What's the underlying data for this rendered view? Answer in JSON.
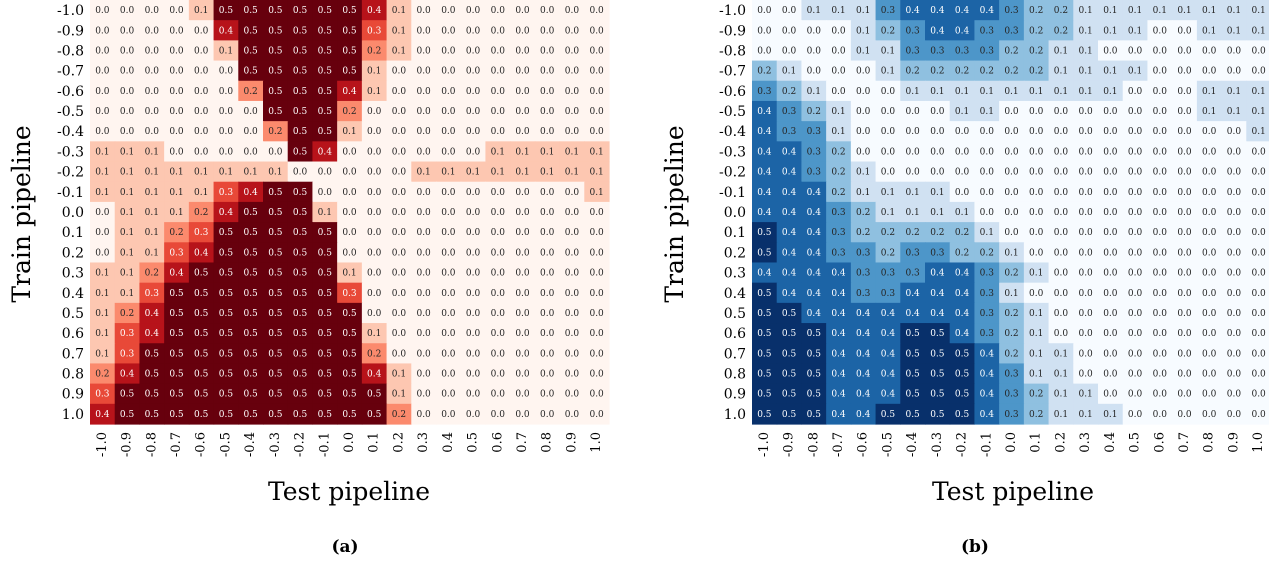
{
  "figure": {
    "panels": [
      {
        "label": "(a)",
        "xlabel": "Test pipeline",
        "ylabel": "Train pipeline",
        "colormap": "Reds"
      },
      {
        "label": "(b)",
        "xlabel": "Test pipeline",
        "ylabel": "Train pipeline",
        "colormap": "Blues"
      }
    ]
  },
  "chart_data": [
    {
      "type": "heatmap",
      "title": "",
      "panel_label": "(a)",
      "xlabel": "Test pipeline",
      "ylabel": "Train pipeline",
      "colormap": "Reds",
      "value_range": [
        0,
        0.5
      ],
      "x": [
        "-1.0",
        "-0.9",
        "-0.8",
        "-0.7",
        "-0.6",
        "-0.5",
        "-0.4",
        "-0.3",
        "-0.2",
        "-0.1",
        "0.0",
        "0.1",
        "0.2",
        "0.3",
        "0.4",
        "0.5",
        "0.6",
        "0.7",
        "0.8",
        "0.9",
        "1.0"
      ],
      "y": [
        "-1.0",
        "-0.9",
        "-0.8",
        "-0.7",
        "-0.6",
        "-0.5",
        "-0.4",
        "-0.3",
        "-0.2",
        "-0.1",
        "0.0",
        "0.1",
        "0.2",
        "0.3",
        "0.4",
        "0.5",
        "0.6",
        "0.7",
        "0.8",
        "0.9",
        "1.0"
      ],
      "values": [
        [
          0.0,
          0.0,
          0.0,
          0.0,
          0.1,
          0.5,
          0.5,
          0.5,
          0.5,
          0.5,
          0.5,
          0.4,
          0.1,
          0.0,
          0.0,
          0.0,
          0.0,
          0.0,
          0.0,
          0.0,
          0.0
        ],
        [
          0.0,
          0.0,
          0.0,
          0.0,
          0.0,
          0.4,
          0.5,
          0.5,
          0.5,
          0.5,
          0.5,
          0.3,
          0.1,
          0.0,
          0.0,
          0.0,
          0.0,
          0.0,
          0.0,
          0.0,
          0.0
        ],
        [
          0.0,
          0.0,
          0.0,
          0.0,
          0.0,
          0.1,
          0.5,
          0.5,
          0.5,
          0.5,
          0.5,
          0.2,
          0.1,
          0.0,
          0.0,
          0.0,
          0.0,
          0.0,
          0.0,
          0.0,
          0.0
        ],
        [
          0.0,
          0.0,
          0.0,
          0.0,
          0.0,
          0.0,
          0.5,
          0.5,
          0.5,
          0.5,
          0.5,
          0.1,
          0.0,
          0.0,
          0.0,
          0.0,
          0.0,
          0.0,
          0.0,
          0.0,
          0.0
        ],
        [
          0.0,
          0.0,
          0.0,
          0.0,
          0.0,
          0.0,
          0.2,
          0.5,
          0.5,
          0.5,
          0.4,
          0.1,
          0.0,
          0.0,
          0.0,
          0.0,
          0.0,
          0.0,
          0.0,
          0.0,
          0.0
        ],
        [
          0.0,
          0.0,
          0.0,
          0.0,
          0.0,
          0.0,
          0.0,
          0.5,
          0.5,
          0.5,
          0.2,
          0.0,
          0.0,
          0.0,
          0.0,
          0.0,
          0.0,
          0.0,
          0.0,
          0.0,
          0.0
        ],
        [
          0.0,
          0.0,
          0.0,
          0.0,
          0.0,
          0.0,
          0.0,
          0.2,
          0.5,
          0.5,
          0.1,
          0.0,
          0.0,
          0.0,
          0.0,
          0.0,
          0.0,
          0.0,
          0.0,
          0.0,
          0.0
        ],
        [
          0.1,
          0.1,
          0.1,
          0.0,
          0.0,
          0.0,
          0.0,
          0.0,
          0.5,
          0.4,
          0.0,
          0.0,
          0.0,
          0.0,
          0.0,
          0.0,
          0.1,
          0.1,
          0.1,
          0.1,
          0.1
        ],
        [
          0.1,
          0.1,
          0.1,
          0.1,
          0.1,
          0.1,
          0.1,
          0.1,
          0.0,
          0.0,
          0.0,
          0.0,
          0.0,
          0.1,
          0.1,
          0.1,
          0.1,
          0.1,
          0.1,
          0.1,
          0.1
        ],
        [
          0.1,
          0.1,
          0.1,
          0.1,
          0.1,
          0.3,
          0.4,
          0.5,
          0.5,
          0.0,
          0.0,
          0.0,
          0.0,
          0.0,
          0.0,
          0.0,
          0.0,
          0.0,
          0.0,
          0.0,
          0.1
        ],
        [
          0.0,
          0.1,
          0.1,
          0.1,
          0.2,
          0.4,
          0.5,
          0.5,
          0.5,
          0.1,
          0.0,
          0.0,
          0.0,
          0.0,
          0.0,
          0.0,
          0.0,
          0.0,
          0.0,
          0.0,
          0.0
        ],
        [
          0.0,
          0.1,
          0.1,
          0.2,
          0.3,
          0.5,
          0.5,
          0.5,
          0.5,
          0.5,
          0.0,
          0.0,
          0.0,
          0.0,
          0.0,
          0.0,
          0.0,
          0.0,
          0.0,
          0.0,
          0.0
        ],
        [
          0.0,
          0.1,
          0.1,
          0.3,
          0.4,
          0.5,
          0.5,
          0.5,
          0.5,
          0.5,
          0.0,
          0.0,
          0.0,
          0.0,
          0.0,
          0.0,
          0.0,
          0.0,
          0.0,
          0.0,
          0.0
        ],
        [
          0.1,
          0.1,
          0.2,
          0.4,
          0.5,
          0.5,
          0.5,
          0.5,
          0.5,
          0.5,
          0.1,
          0.0,
          0.0,
          0.0,
          0.0,
          0.0,
          0.0,
          0.0,
          0.0,
          0.0,
          0.0
        ],
        [
          0.1,
          0.1,
          0.3,
          0.5,
          0.5,
          0.5,
          0.5,
          0.5,
          0.5,
          0.5,
          0.3,
          0.0,
          0.0,
          0.0,
          0.0,
          0.0,
          0.0,
          0.0,
          0.0,
          0.0,
          0.0
        ],
        [
          0.1,
          0.2,
          0.4,
          0.5,
          0.5,
          0.5,
          0.5,
          0.5,
          0.5,
          0.5,
          0.5,
          0.0,
          0.0,
          0.0,
          0.0,
          0.0,
          0.0,
          0.0,
          0.0,
          0.0,
          0.0
        ],
        [
          0.1,
          0.3,
          0.4,
          0.5,
          0.5,
          0.5,
          0.5,
          0.5,
          0.5,
          0.5,
          0.5,
          0.1,
          0.0,
          0.0,
          0.0,
          0.0,
          0.0,
          0.0,
          0.0,
          0.0,
          0.0
        ],
        [
          0.1,
          0.3,
          0.5,
          0.5,
          0.5,
          0.5,
          0.5,
          0.5,
          0.5,
          0.5,
          0.5,
          0.2,
          0.0,
          0.0,
          0.0,
          0.0,
          0.0,
          0.0,
          0.0,
          0.0,
          0.0
        ],
        [
          0.2,
          0.4,
          0.5,
          0.5,
          0.5,
          0.5,
          0.5,
          0.5,
          0.5,
          0.5,
          0.5,
          0.4,
          0.1,
          0.0,
          0.0,
          0.0,
          0.0,
          0.0,
          0.0,
          0.0,
          0.0
        ],
        [
          0.3,
          0.5,
          0.5,
          0.5,
          0.5,
          0.5,
          0.5,
          0.5,
          0.5,
          0.5,
          0.5,
          0.5,
          0.1,
          0.0,
          0.0,
          0.0,
          0.0,
          0.0,
          0.0,
          0.0,
          0.0
        ],
        [
          0.4,
          0.5,
          0.5,
          0.5,
          0.5,
          0.5,
          0.5,
          0.5,
          0.5,
          0.5,
          0.5,
          0.5,
          0.2,
          0.0,
          0.0,
          0.0,
          0.0,
          0.0,
          0.0,
          0.0,
          0.0
        ]
      ]
    },
    {
      "type": "heatmap",
      "title": "",
      "panel_label": "(b)",
      "xlabel": "Test pipeline",
      "ylabel": "Train pipeline",
      "colormap": "Blues",
      "value_range": [
        0,
        0.5
      ],
      "x": [
        "-1.0",
        "-0.9",
        "-0.8",
        "-0.7",
        "-0.6",
        "-0.5",
        "-0.4",
        "-0.3",
        "-0.2",
        "-0.1",
        "0.0",
        "0.1",
        "0.2",
        "0.3",
        "0.4",
        "0.5",
        "0.6",
        "0.7",
        "0.8",
        "0.9",
        "1.0"
      ],
      "y": [
        "-1.0",
        "-0.9",
        "-0.8",
        "-0.7",
        "-0.6",
        "-0.5",
        "-0.4",
        "-0.3",
        "-0.2",
        "-0.1",
        "0.0",
        "0.1",
        "0.2",
        "0.3",
        "0.4",
        "0.5",
        "0.6",
        "0.7",
        "0.8",
        "0.9",
        "1.0"
      ],
      "values": [
        [
          0.0,
          0.0,
          0.1,
          0.1,
          0.1,
          0.3,
          0.4,
          0.4,
          0.4,
          0.4,
          0.3,
          0.2,
          0.2,
          0.1,
          0.1,
          0.1,
          0.1,
          0.1,
          0.1,
          0.1,
          0.1
        ],
        [
          0.0,
          0.0,
          0.0,
          0.0,
          0.1,
          0.2,
          0.3,
          0.4,
          0.4,
          0.3,
          0.3,
          0.2,
          0.2,
          0.1,
          0.1,
          0.1,
          0.0,
          0.0,
          0.1,
          0.1,
          0.1
        ],
        [
          0.0,
          0.0,
          0.0,
          0.0,
          0.1,
          0.1,
          0.3,
          0.3,
          0.3,
          0.3,
          0.2,
          0.2,
          0.1,
          0.1,
          0.0,
          0.0,
          0.0,
          0.0,
          0.0,
          0.0,
          0.0
        ],
        [
          0.2,
          0.1,
          0.0,
          0.0,
          0.0,
          0.1,
          0.2,
          0.2,
          0.2,
          0.2,
          0.2,
          0.2,
          0.1,
          0.1,
          0.1,
          0.1,
          0.0,
          0.0,
          0.0,
          0.0,
          0.0
        ],
        [
          0.3,
          0.2,
          0.1,
          0.0,
          0.0,
          0.0,
          0.1,
          0.1,
          0.1,
          0.1,
          0.1,
          0.1,
          0.1,
          0.1,
          0.1,
          0.0,
          0.0,
          0.0,
          0.1,
          0.1,
          0.1
        ],
        [
          0.4,
          0.3,
          0.2,
          0.1,
          0.0,
          0.0,
          0.0,
          0.0,
          0.1,
          0.1,
          0.0,
          0.0,
          0.0,
          0.0,
          0.0,
          0.0,
          0.0,
          0.0,
          0.1,
          0.1,
          0.1
        ],
        [
          0.4,
          0.3,
          0.3,
          0.1,
          0.0,
          0.0,
          0.0,
          0.0,
          0.0,
          0.0,
          0.0,
          0.0,
          0.0,
          0.0,
          0.0,
          0.0,
          0.0,
          0.0,
          0.0,
          0.0,
          0.1
        ],
        [
          0.4,
          0.4,
          0.3,
          0.2,
          0.0,
          0.0,
          0.0,
          0.0,
          0.0,
          0.0,
          0.0,
          0.0,
          0.0,
          0.0,
          0.0,
          0.0,
          0.0,
          0.0,
          0.0,
          0.0,
          0.0
        ],
        [
          0.4,
          0.4,
          0.3,
          0.2,
          0.1,
          0.0,
          0.0,
          0.0,
          0.0,
          0.0,
          0.0,
          0.0,
          0.0,
          0.0,
          0.0,
          0.0,
          0.0,
          0.0,
          0.0,
          0.0,
          0.0
        ],
        [
          0.4,
          0.4,
          0.4,
          0.2,
          0.1,
          0.1,
          0.1,
          0.1,
          0.0,
          0.0,
          0.0,
          0.0,
          0.0,
          0.0,
          0.0,
          0.0,
          0.0,
          0.0,
          0.0,
          0.0,
          0.0
        ],
        [
          0.4,
          0.4,
          0.4,
          0.3,
          0.2,
          0.1,
          0.1,
          0.1,
          0.1,
          0.0,
          0.0,
          0.0,
          0.0,
          0.0,
          0.0,
          0.0,
          0.0,
          0.0,
          0.0,
          0.0,
          0.0
        ],
        [
          0.5,
          0.4,
          0.4,
          0.3,
          0.2,
          0.2,
          0.2,
          0.2,
          0.2,
          0.1,
          0.0,
          0.0,
          0.0,
          0.0,
          0.0,
          0.0,
          0.0,
          0.0,
          0.0,
          0.0,
          0.0
        ],
        [
          0.5,
          0.4,
          0.4,
          0.3,
          0.3,
          0.2,
          0.3,
          0.3,
          0.2,
          0.2,
          0.1,
          0.0,
          0.0,
          0.0,
          0.0,
          0.0,
          0.0,
          0.0,
          0.0,
          0.0,
          0.0
        ],
        [
          0.4,
          0.4,
          0.4,
          0.4,
          0.3,
          0.3,
          0.3,
          0.4,
          0.4,
          0.3,
          0.2,
          0.1,
          0.0,
          0.0,
          0.0,
          0.0,
          0.0,
          0.0,
          0.0,
          0.0,
          0.0
        ],
        [
          0.5,
          0.4,
          0.4,
          0.4,
          0.3,
          0.3,
          0.4,
          0.4,
          0.4,
          0.3,
          0.1,
          0.0,
          0.0,
          0.0,
          0.0,
          0.0,
          0.0,
          0.0,
          0.0,
          0.0,
          0.0
        ],
        [
          0.5,
          0.5,
          0.4,
          0.4,
          0.4,
          0.4,
          0.4,
          0.4,
          0.4,
          0.3,
          0.2,
          0.1,
          0.0,
          0.0,
          0.0,
          0.0,
          0.0,
          0.0,
          0.0,
          0.0,
          0.0
        ],
        [
          0.5,
          0.5,
          0.5,
          0.4,
          0.4,
          0.4,
          0.5,
          0.5,
          0.4,
          0.3,
          0.2,
          0.1,
          0.0,
          0.0,
          0.0,
          0.0,
          0.0,
          0.0,
          0.0,
          0.0,
          0.0
        ],
        [
          0.5,
          0.5,
          0.5,
          0.4,
          0.4,
          0.4,
          0.5,
          0.5,
          0.5,
          0.4,
          0.2,
          0.1,
          0.1,
          0.0,
          0.0,
          0.0,
          0.0,
          0.0,
          0.0,
          0.0,
          0.0
        ],
        [
          0.5,
          0.5,
          0.5,
          0.4,
          0.4,
          0.4,
          0.5,
          0.5,
          0.5,
          0.4,
          0.3,
          0.1,
          0.1,
          0.0,
          0.0,
          0.0,
          0.0,
          0.0,
          0.0,
          0.0,
          0.0
        ],
        [
          0.5,
          0.5,
          0.5,
          0.4,
          0.4,
          0.4,
          0.5,
          0.5,
          0.5,
          0.4,
          0.3,
          0.2,
          0.1,
          0.1,
          0.0,
          0.0,
          0.0,
          0.0,
          0.0,
          0.0,
          0.0
        ],
        [
          0.5,
          0.5,
          0.5,
          0.4,
          0.4,
          0.5,
          0.5,
          0.5,
          0.5,
          0.4,
          0.3,
          0.2,
          0.1,
          0.1,
          0.1,
          0.0,
          0.0,
          0.0,
          0.0,
          0.0,
          0.0
        ]
      ]
    }
  ]
}
